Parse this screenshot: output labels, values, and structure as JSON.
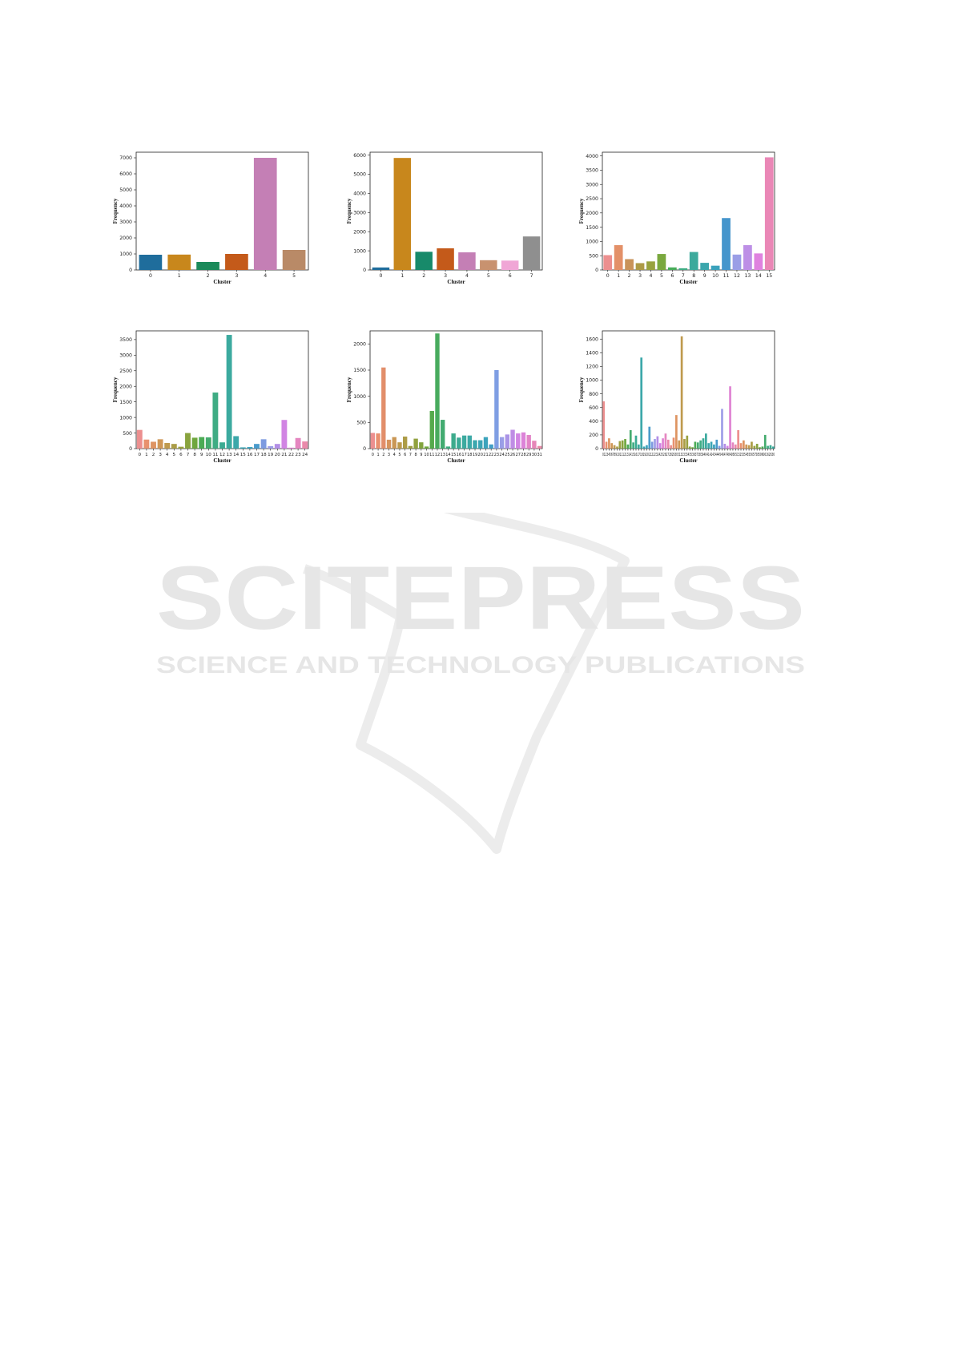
{
  "watermark": {
    "title": "SCITEPRESS",
    "subtitle": "SCIENCE AND TECHNOLOGY PUBLICATIONS"
  },
  "chart_data": [
    {
      "type": "bar",
      "xlabel": "Cluster",
      "ylabel": "Frequency",
      "ylim": [
        0,
        7350
      ],
      "yticks": [
        0,
        1000,
        2000,
        3000,
        4000,
        5000,
        6000,
        7000
      ],
      "categories": [
        "0",
        "1",
        "2",
        "3",
        "4",
        "5"
      ],
      "values": [
        950,
        960,
        500,
        1000,
        7000,
        1250
      ],
      "colors": [
        "#1f6d9c",
        "#c8871c",
        "#1b8a5a",
        "#c45a1a",
        "#c47fb5",
        "#b98a67"
      ]
    },
    {
      "type": "bar",
      "xlabel": "Cluster",
      "ylabel": "Frequency",
      "ylim": [
        0,
        6150
      ],
      "yticks": [
        0,
        1000,
        2000,
        3000,
        4000,
        5000,
        6000
      ],
      "categories": [
        "0",
        "1",
        "2",
        "3",
        "4",
        "5",
        "6",
        "7"
      ],
      "values": [
        130,
        5850,
        950,
        1130,
        920,
        510,
        490,
        1750
      ],
      "colors": [
        "#1f6d9c",
        "#c8871c",
        "#178a6a",
        "#c45a1a",
        "#c47fb5",
        "#c8926f",
        "#f0a6d6",
        "#8f8f8f"
      ]
    },
    {
      "type": "bar",
      "xlabel": "Cluster",
      "ylabel": "Frequency",
      "ylim": [
        0,
        4130
      ],
      "yticks": [
        0,
        500,
        1000,
        1500,
        2000,
        2500,
        3000,
        3500,
        4000
      ],
      "categories": [
        "0",
        "1",
        "2",
        "3",
        "4",
        "5",
        "6",
        "7",
        "8",
        "9",
        "10",
        "11",
        "12",
        "13",
        "14",
        "15"
      ],
      "values": [
        520,
        870,
        380,
        240,
        300,
        560,
        90,
        60,
        630,
        250,
        150,
        1820,
        540,
        870,
        580,
        3950
      ],
      "colors": [
        "#ec8f8f",
        "#e39068",
        "#c9935a",
        "#ad9a46",
        "#98a23e",
        "#7aa83e",
        "#48ac5a",
        "#3fac83",
        "#3caa9c",
        "#3ba6ac",
        "#3aa2bc",
        "#4595cc",
        "#9a9ee6",
        "#bd8fe6",
        "#df82df",
        "#ea87b6"
      ]
    },
    {
      "type": "bar",
      "xlabel": "Cluster",
      "ylabel": "Frequency",
      "ylim": [
        0,
        3780
      ],
      "yticks": [
        0,
        500,
        1000,
        1500,
        2000,
        2500,
        3000,
        3500
      ],
      "categories": [
        "0",
        "1",
        "2",
        "3",
        "4",
        "5",
        "6",
        "7",
        "8",
        "9",
        "10",
        "11",
        "12",
        "13",
        "14",
        "15",
        "16",
        "17",
        "18",
        "19",
        "20",
        "21",
        "22",
        "23",
        "24"
      ],
      "values": [
        600,
        290,
        220,
        300,
        180,
        150,
        60,
        500,
        350,
        370,
        360,
        1800,
        200,
        3650,
        400,
        40,
        50,
        150,
        300,
        80,
        150,
        920,
        30,
        340,
        230
      ],
      "colors": [
        "#ec8f8f",
        "#e8916e",
        "#de9462",
        "#cf9757",
        "#bf9a4e",
        "#ab9d46",
        "#9aa040",
        "#89a33e",
        "#6fa73e",
        "#4cab55",
        "#44ab6e",
        "#3fac84",
        "#3cab93",
        "#3caa9f",
        "#3ca8aa",
        "#3ba5b4",
        "#3ba2bd",
        "#4a9bcb",
        "#7d9ae0",
        "#9e9ee7",
        "#b38fe6",
        "#d184e3",
        "#df83d3",
        "#e586c0",
        "#ea8aab"
      ]
    },
    {
      "type": "bar",
      "xlabel": "Cluster",
      "ylabel": "Frequency",
      "ylim": [
        0,
        2250
      ],
      "yticks": [
        0,
        500,
        1000,
        1500,
        2000
      ],
      "categories": [
        "0",
        "1",
        "2",
        "3",
        "4",
        "5",
        "6",
        "7",
        "8",
        "9",
        "10",
        "11",
        "12",
        "13",
        "14",
        "15",
        "16",
        "17",
        "18",
        "19",
        "20",
        "21",
        "22",
        "23",
        "24",
        "25",
        "26",
        "27",
        "28",
        "29",
        "30",
        "31"
      ],
      "values": [
        300,
        290,
        1550,
        170,
        220,
        120,
        230,
        50,
        190,
        120,
        40,
        720,
        2200,
        550,
        40,
        290,
        210,
        250,
        250,
        160,
        160,
        220,
        80,
        1500,
        220,
        270,
        360,
        290,
        310,
        260,
        150,
        50
      ],
      "colors": [
        "#ec8f8f",
        "#e9906f",
        "#e28e6a",
        "#d7945d",
        "#ca9755",
        "#bc9a4d",
        "#ad9c47",
        "#9f9f42",
        "#91a13f",
        "#82a43e",
        "#6fa73f",
        "#55aa4c",
        "#48ab5e",
        "#42ab70",
        "#3fac80",
        "#3dab8c",
        "#3cab96",
        "#3caa9f",
        "#3ca9a7",
        "#3ba7ae",
        "#3ba5b5",
        "#3ba3bc",
        "#429ec6",
        "#7f9ee3",
        "#9a9ee7",
        "#ab94e6",
        "#bf8de5",
        "#d185e3",
        "#dc83d8",
        "#e284c7",
        "#e687b8",
        "#ea8aa8"
      ]
    },
    {
      "type": "bar",
      "xlabel": "Cluster",
      "ylabel": "Frequency",
      "ylim": [
        0,
        1720
      ],
      "yticks": [
        0,
        200,
        400,
        600,
        800,
        1000,
        1200,
        1400,
        1600
      ],
      "xtick_text": "01234567891011121314151617181920212223242526272829303132333435363738394041424344454647484950515253545556575859606162636",
      "categories": [
        "0",
        "1",
        "2",
        "3",
        "4",
        "5",
        "6",
        "7",
        "8",
        "9",
        "10",
        "11",
        "12",
        "13",
        "14",
        "15",
        "16",
        "17",
        "18",
        "19",
        "20",
        "21",
        "22",
        "23",
        "24",
        "25",
        "26",
        "27",
        "28",
        "29",
        "30",
        "31",
        "32",
        "33",
        "34",
        "35",
        "36",
        "37",
        "38",
        "39",
        "40",
        "41",
        "42",
        "43",
        "44",
        "45",
        "46",
        "47",
        "48",
        "49",
        "50",
        "51",
        "52",
        "53",
        "54",
        "55",
        "56",
        "57",
        "58",
        "59",
        "60",
        "61",
        "62",
        "63"
      ],
      "values": [
        690,
        100,
        150,
        80,
        50,
        30,
        110,
        120,
        140,
        60,
        270,
        90,
        190,
        60,
        1330,
        30,
        50,
        320,
        100,
        140,
        180,
        80,
        150,
        220,
        130,
        50,
        160,
        490,
        120,
        1640,
        140,
        190,
        30,
        20,
        100,
        90,
        120,
        150,
        220,
        80,
        100,
        60,
        130,
        40,
        580,
        70,
        40,
        910,
        90,
        60,
        270,
        80,
        120,
        60,
        50,
        100,
        40,
        70,
        20,
        30,
        200,
        40,
        50,
        30
      ],
      "colors": [
        "#ec8f8f",
        "#e8906e",
        "#de9462",
        "#cf9757",
        "#bf9a4e",
        "#ab9d46",
        "#9aa040",
        "#89a33e",
        "#6fa73e",
        "#4cab55",
        "#44ab6e",
        "#3fac84",
        "#3cab93",
        "#3caa9f",
        "#3ca8aa",
        "#3ba5b4",
        "#3ba2bd",
        "#4a9bcb",
        "#7d9ae0",
        "#9e9ee7",
        "#b38fe6",
        "#d184e3",
        "#df83d3",
        "#e586c0",
        "#ea8aab"
      ]
    }
  ]
}
